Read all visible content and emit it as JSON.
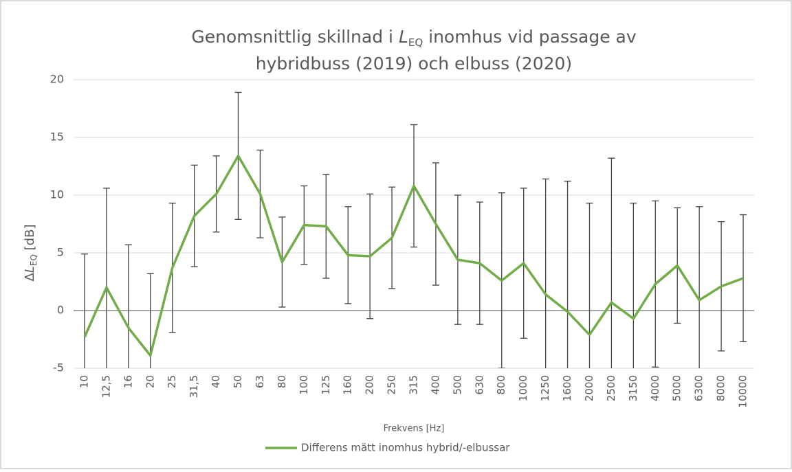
{
  "chart_data": {
    "type": "line",
    "title": [
      [
        "Genomsnittlig skillnad i ",
        "L",
        "EQ",
        " inomhus vid passage av"
      ],
      [
        "hybridbuss (2019) och elbuss (2020)"
      ]
    ],
    "y_label": [
      "Δ",
      "L",
      "EQ",
      " [dB]"
    ],
    "x_label": "Frekvens [Hz]",
    "categories": [
      "10",
      "12,5",
      "16",
      "20",
      "25",
      "31,5",
      "40",
      "50",
      "63",
      "80",
      "100",
      "125",
      "160",
      "200",
      "250",
      "315",
      "400",
      "500",
      "630",
      "800",
      "1000",
      "1250",
      "1600",
      "2000",
      "2500",
      "3150",
      "4000",
      "5000",
      "6300",
      "8000",
      "10000"
    ],
    "series": [
      {
        "name": "Differens mätt inomhus hybrid/-elbussar",
        "color": "#70ad47",
        "values": [
          -2.3,
          2.0,
          -1.5,
          -3.9,
          3.7,
          8.2,
          10.1,
          13.4,
          10.1,
          4.2,
          7.4,
          7.3,
          4.8,
          4.7,
          6.3,
          10.8,
          7.5,
          4.4,
          4.1,
          2.6,
          4.1,
          1.4,
          -0.1,
          -2.1,
          0.7,
          -0.7,
          2.3,
          3.9,
          0.9,
          2.1,
          2.8
        ],
        "errors": [
          7.2,
          8.6,
          7.2,
          7.1,
          5.6,
          4.4,
          3.3,
          5.5,
          3.8,
          3.9,
          3.4,
          4.5,
          4.2,
          5.4,
          4.4,
          5.3,
          5.3,
          5.6,
          5.3,
          7.6,
          6.5,
          10.0,
          11.3,
          11.4,
          12.5,
          10.0,
          7.2,
          5.0,
          8.1,
          5.6,
          5.5
        ],
        "error_color": "#404040"
      }
    ],
    "ylim": [
      -5,
      20
    ],
    "yticks": [
      -5,
      0,
      5,
      10,
      15,
      20
    ],
    "grid": true,
    "legend": "bottom"
  }
}
